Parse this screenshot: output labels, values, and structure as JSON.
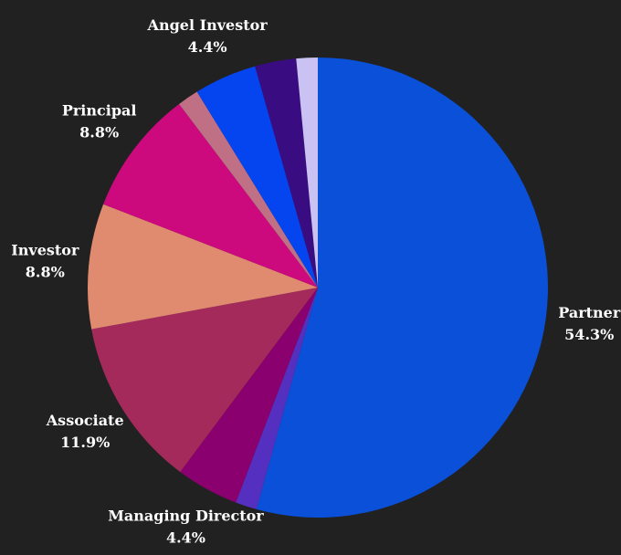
{
  "chart_data": {
    "type": "pie",
    "categories": [
      "Partner",
      null,
      "Managing Director",
      "Associate",
      "Investor",
      "Principal",
      null,
      "Angel Investor",
      null,
      null
    ],
    "values": [
      54.3,
      1.5,
      4.4,
      11.9,
      8.8,
      8.8,
      1.5,
      4.4,
      2.9,
      1.5
    ],
    "value_labels": [
      "54.3%",
      null,
      "4.4%",
      "11.9%",
      "8.8%",
      "8.8%",
      null,
      "4.4%",
      null,
      null
    ],
    "colors": [
      "#0a50d8",
      "#5530c0",
      "#8a006e",
      "#a52a5c",
      "#e08a70",
      "#cc0a7e",
      "#c07085",
      "#0545f0",
      "#3a0c82",
      "#cac2f2"
    ]
  }
}
